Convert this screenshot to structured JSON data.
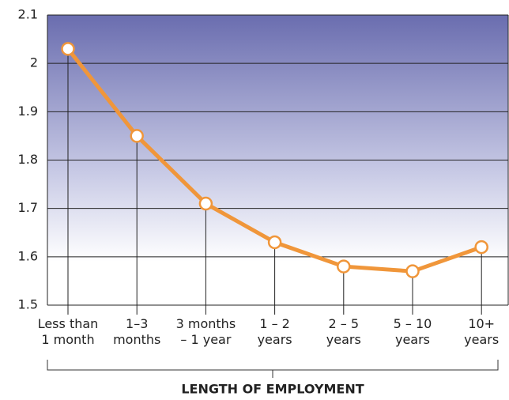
{
  "chart_data": {
    "type": "line",
    "x_label": "LENGTH OF EMPLOYMENT",
    "categories": [
      "Less than\n1 month",
      "1–3\nmonths",
      "3 months\n– 1 year",
      "1 – 2\nyears",
      "2 – 5\nyears",
      "5 – 10\nyears",
      "10+\nyears"
    ],
    "series": [
      {
        "name": "Series",
        "color": "#f0963a",
        "values": [
          2.03,
          1.85,
          1.71,
          1.63,
          1.58,
          1.57,
          1.62
        ]
      }
    ],
    "ylim": [
      1.5,
      2.1
    ],
    "yticks": [
      1.5,
      1.6,
      1.7,
      1.8,
      1.9,
      2.0,
      2.1
    ],
    "grid": true
  }
}
